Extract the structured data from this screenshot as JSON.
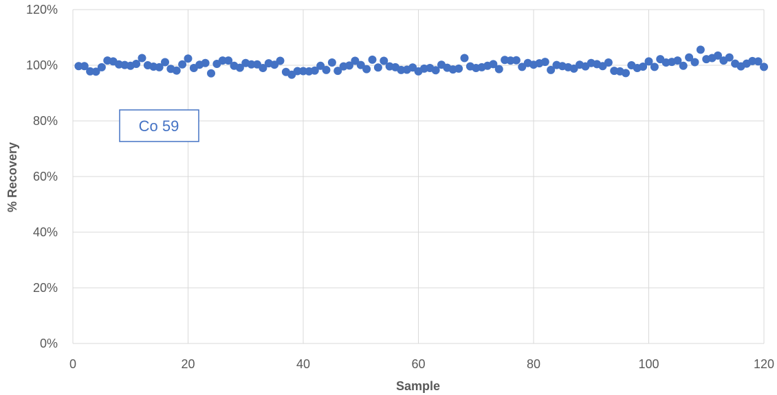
{
  "chart_data": {
    "type": "scatter",
    "title": "",
    "xlabel": "Sample",
    "ylabel": "% Recovery",
    "xlim": [
      0,
      120
    ],
    "ylim": [
      0,
      1.2
    ],
    "x_ticks": [
      0,
      20,
      40,
      60,
      80,
      100,
      120
    ],
    "y_ticks": [
      0,
      0.2,
      0.4,
      0.6,
      0.8,
      1.0,
      1.2
    ],
    "x_tick_labels": [
      "0",
      "20",
      "40",
      "60",
      "80",
      "100",
      "120"
    ],
    "y_tick_labels": [
      "0%",
      "20%",
      "40%",
      "60%",
      "80%",
      "100%",
      "120%"
    ],
    "grid": true,
    "legend": "none",
    "marker_color": "#4472c4",
    "annotation": "Co 59",
    "series": [
      {
        "x": [
          1,
          2,
          3,
          4,
          5,
          6,
          7,
          8,
          9,
          10,
          11,
          12,
          13,
          14,
          15,
          16,
          17,
          18,
          19,
          20,
          21,
          22,
          23,
          24,
          25,
          26,
          27,
          28,
          29,
          30,
          31,
          32,
          33,
          34,
          35,
          36,
          37,
          38,
          39,
          40,
          41,
          42,
          43,
          44,
          45,
          46,
          47,
          48,
          49,
          50,
          51,
          52,
          53,
          54,
          55,
          56,
          57,
          58,
          59,
          60,
          61,
          62,
          63,
          64,
          65,
          66,
          67,
          68,
          69,
          70,
          71,
          72,
          73,
          74,
          75,
          76,
          77,
          78,
          79,
          80,
          81,
          82,
          83,
          84,
          85,
          86,
          87,
          88,
          89,
          90,
          91,
          92,
          93,
          94,
          95,
          96,
          97,
          98,
          99,
          100,
          101,
          102,
          103,
          104,
          105,
          106,
          107,
          108,
          109,
          110,
          111,
          112,
          113,
          114,
          115,
          116,
          117,
          118,
          119,
          120
        ],
        "y": [
          0.997,
          0.997,
          0.978,
          0.977,
          0.993,
          1.017,
          1.014,
          1.003,
          1.001,
          0.998,
          1.005,
          1.026,
          1.0,
          0.995,
          0.993,
          1.011,
          0.987,
          0.981,
          1.003,
          1.024,
          0.99,
          1.002,
          1.008,
          0.971,
          1.005,
          1.017,
          1.017,
          0.998,
          0.991,
          1.008,
          1.003,
          1.003,
          0.99,
          1.007,
          1.002,
          1.016,
          0.976,
          0.966,
          0.979,
          0.979,
          0.978,
          0.981,
          0.998,
          0.983,
          1.01,
          0.98,
          0.996,
          0.999,
          1.016,
          1.001,
          0.986,
          1.02,
          0.992,
          1.016,
          0.996,
          0.993,
          0.983,
          0.984,
          0.992,
          0.978,
          0.988,
          0.99,
          0.982,
          1.002,
          0.991,
          0.985,
          0.988,
          1.026,
          0.996,
          0.99,
          0.993,
          0.998,
          1.004,
          0.986,
          1.019,
          1.017,
          1.018,
          0.994,
          1.008,
          1.002,
          1.007,
          1.012,
          0.983,
          1.001,
          0.997,
          0.993,
          0.988,
          1.002,
          0.996,
          1.008,
          1.004,
          0.997,
          1.01,
          0.98,
          0.978,
          0.972,
          1.0,
          0.99,
          0.995,
          1.014,
          0.994,
          1.022,
          1.01,
          1.012,
          1.017,
          0.998,
          1.028,
          1.011,
          1.056,
          1.022,
          1.026,
          1.035,
          1.017,
          1.028,
          1.006,
          0.996,
          1.006,
          1.015,
          1.014,
          0.994
        ]
      }
    ]
  }
}
